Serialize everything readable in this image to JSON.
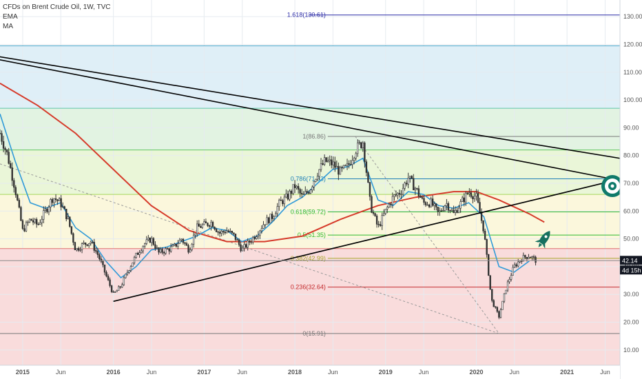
{
  "header": {
    "title": "CFDs on Brent Crude Oil, 1W, TVC",
    "indicator_ema": "EMA",
    "indicator_ma": "MA"
  },
  "price_badge": {
    "value": "42.14",
    "countdown": "4d 15h"
  },
  "colors": {
    "candle": "#333333",
    "ema": "#2f9ad8",
    "ma": "#d63a2a",
    "trendline": "#000000",
    "target": "#0f7a6a",
    "rocket": "#16705f"
  },
  "icons": [
    "target-icon",
    "rocket-icon"
  ],
  "chart_data": {
    "type": "candlestick",
    "title": "CFDs on Brent Crude Oil, 1W, TVC",
    "x_axis": {
      "ticks": [
        "2015",
        "Jun",
        "2016",
        "Jun",
        "2017",
        "Jun",
        "2018",
        "Jun",
        "2019",
        "Jun",
        "2020",
        "Jun",
        "2021",
        "Jun"
      ],
      "range": [
        "2014-10",
        "2021-08"
      ]
    },
    "y_axis": {
      "ticks": [
        "10.00",
        "20.00",
        "30.00",
        "40.00",
        "50.00",
        "60.00",
        "70.00",
        "80.00",
        "90.00",
        "100.00",
        "110.00",
        "120.00",
        "130.00"
      ],
      "range": [
        4.5,
        136
      ]
    },
    "fibonacci": {
      "levels": [
        {
          "label": "0(15.91)",
          "value": 15.91,
          "color": "#787878"
        },
        {
          "label": "0.236(32.64)",
          "value": 32.64,
          "color": "#c2282b"
        },
        {
          "label": "0.382(42.99)",
          "value": 42.99,
          "color": "#a6a62b"
        },
        {
          "label": "0.5(51.35)",
          "value": 51.35,
          "color": "#2db82d"
        },
        {
          "label": "0.618(59.72)",
          "value": 59.72,
          "color": "#2db82d"
        },
        {
          "label": "0.786(71.63)",
          "value": 71.63,
          "color": "#1e7fb8"
        },
        {
          "label": "1(86.86)",
          "value": 86.86,
          "color": "#787878"
        },
        {
          "label": "1.618(130.61)",
          "value": 130.61,
          "color": "#2a2aa6"
        }
      ],
      "zone_levels": [
        46.5,
        66,
        82,
        97,
        119.5
      ],
      "unlabeled_lines": [
        {
          "value": 46.5,
          "color": "#e07070"
        },
        {
          "value": 66,
          "color": "#a6d65a"
        },
        {
          "value": 82,
          "color": "#5fc45f"
        },
        {
          "value": 97,
          "color": "#5fc4a8"
        },
        {
          "value": 119.5,
          "color": "#4aa6c8"
        }
      ]
    },
    "trendlines": [
      {
        "from": [
          "2014-09",
          116
        ],
        "to": [
          "2021-08",
          79
        ]
      },
      {
        "from": [
          "2014-09",
          115
        ],
        "to": [
          "2021-08",
          71
        ]
      },
      {
        "from": [
          "2016-01",
          27.5
        ],
        "to": [
          "2021-08",
          71.5
        ]
      }
    ],
    "fib_diagonal": {
      "from": [
        "2018-09",
        86.86
      ],
      "to": [
        "2020-04",
        15.91
      ]
    },
    "dashed_guide": {
      "from": [
        "2014-10",
        77
      ],
      "to": [
        "2020-04",
        15.91
      ]
    },
    "last_price": 42.14,
    "price_path": [
      [
        "2014-10",
        88
      ],
      [
        "2014-11",
        80
      ],
      [
        "2014-12",
        68
      ],
      [
        "2015-01",
        53
      ],
      [
        "2015-02",
        57
      ],
      [
        "2015-03",
        55
      ],
      [
        "2015-04",
        60
      ],
      [
        "2015-05",
        65
      ],
      [
        "2015-06",
        63
      ],
      [
        "2015-07",
        57
      ],
      [
        "2015-08",
        46
      ],
      [
        "2015-09",
        48
      ],
      [
        "2015-10",
        49
      ],
      [
        "2015-11",
        44
      ],
      [
        "2015-12",
        37
      ],
      [
        "2016-01",
        30
      ],
      [
        "2016-02",
        33
      ],
      [
        "2016-03",
        39
      ],
      [
        "2016-04",
        44
      ],
      [
        "2016-05",
        48
      ],
      [
        "2016-06",
        50
      ],
      [
        "2016-07",
        45
      ],
      [
        "2016-08",
        46
      ],
      [
        "2016-09",
        47
      ],
      [
        "2016-10",
        50
      ],
      [
        "2016-11",
        46
      ],
      [
        "2016-12",
        54
      ],
      [
        "2017-01",
        55
      ],
      [
        "2017-02",
        56
      ],
      [
        "2017-03",
        52
      ],
      [
        "2017-04",
        53
      ],
      [
        "2017-05",
        51
      ],
      [
        "2017-06",
        46
      ],
      [
        "2017-07",
        49
      ],
      [
        "2017-08",
        52
      ],
      [
        "2017-09",
        56
      ],
      [
        "2017-10",
        58
      ],
      [
        "2017-11",
        63
      ],
      [
        "2017-12",
        65
      ],
      [
        "2018-01",
        69
      ],
      [
        "2018-02",
        65
      ],
      [
        "2018-03",
        68
      ],
      [
        "2018-04",
        74
      ],
      [
        "2018-05",
        78
      ],
      [
        "2018-06",
        77
      ],
      [
        "2018-07",
        74
      ],
      [
        "2018-08",
        76
      ],
      [
        "2018-09",
        82
      ],
      [
        "2018-10",
        85
      ],
      [
        "2018-11",
        62
      ],
      [
        "2018-12",
        54
      ],
      [
        "2019-01",
        60
      ],
      [
        "2019-02",
        65
      ],
      [
        "2019-03",
        67
      ],
      [
        "2019-04",
        72
      ],
      [
        "2019-05",
        68
      ],
      [
        "2019-06",
        63
      ],
      [
        "2019-07",
        63
      ],
      [
        "2019-08",
        59
      ],
      [
        "2019-09",
        63
      ],
      [
        "2019-10",
        59
      ],
      [
        "2019-11",
        63
      ],
      [
        "2019-12",
        67
      ],
      [
        "2020-01",
        65
      ],
      [
        "2020-02",
        53
      ],
      [
        "2020-03",
        28
      ],
      [
        "2020-04",
        22
      ],
      [
        "2020-05",
        33
      ],
      [
        "2020-06",
        40
      ],
      [
        "2020-07",
        43
      ],
      [
        "2020-08",
        44
      ],
      [
        "2020-09",
        42
      ]
    ],
    "ema_path": [
      [
        "2014-10",
        95
      ],
      [
        "2014-12",
        78
      ],
      [
        "2015-02",
        63
      ],
      [
        "2015-04",
        61
      ],
      [
        "2015-06",
        63
      ],
      [
        "2015-08",
        54
      ],
      [
        "2015-10",
        50
      ],
      [
        "2015-12",
        42
      ],
      [
        "2016-02",
        36
      ],
      [
        "2016-04",
        40
      ],
      [
        "2016-06",
        46
      ],
      [
        "2016-08",
        47
      ],
      [
        "2016-10",
        49
      ],
      [
        "2016-12",
        51
      ],
      [
        "2017-02",
        54
      ],
      [
        "2017-04",
        53
      ],
      [
        "2017-06",
        49
      ],
      [
        "2017-08",
        51
      ],
      [
        "2017-10",
        56
      ],
      [
        "2017-12",
        62
      ],
      [
        "2018-02",
        65
      ],
      [
        "2018-04",
        70
      ],
      [
        "2018-06",
        75
      ],
      [
        "2018-08",
        76
      ],
      [
        "2018-10",
        79
      ],
      [
        "2018-12",
        64
      ],
      [
        "2019-02",
        62
      ],
      [
        "2019-04",
        67
      ],
      [
        "2019-06",
        66
      ],
      [
        "2019-08",
        62
      ],
      [
        "2019-10",
        61
      ],
      [
        "2019-12",
        63
      ],
      [
        "2020-02",
        58
      ],
      [
        "2020-04",
        40
      ],
      [
        "2020-06",
        38
      ],
      [
        "2020-08",
        42
      ]
    ],
    "ma_path": [
      [
        "2014-10",
        106
      ],
      [
        "2015-03",
        98
      ],
      [
        "2015-08",
        88
      ],
      [
        "2016-01",
        75
      ],
      [
        "2016-06",
        62
      ],
      [
        "2016-11",
        53
      ],
      [
        "2017-04",
        49
      ],
      [
        "2017-09",
        49
      ],
      [
        "2018-02",
        51
      ],
      [
        "2018-07",
        57
      ],
      [
        "2018-12",
        62
      ],
      [
        "2019-05",
        65
      ],
      [
        "2019-10",
        67
      ],
      [
        "2020-01",
        67
      ],
      [
        "2020-04",
        64
      ],
      [
        "2020-08",
        59
      ],
      [
        "2020-10",
        56
      ]
    ],
    "series": [
      {
        "name": "EMA"
      },
      {
        "name": "MA"
      }
    ],
    "annotations": [
      {
        "type": "target",
        "at": [
          "2021-07",
          69
        ]
      },
      {
        "type": "rocket",
        "at": [
          "2020-10",
          50
        ]
      }
    ]
  }
}
